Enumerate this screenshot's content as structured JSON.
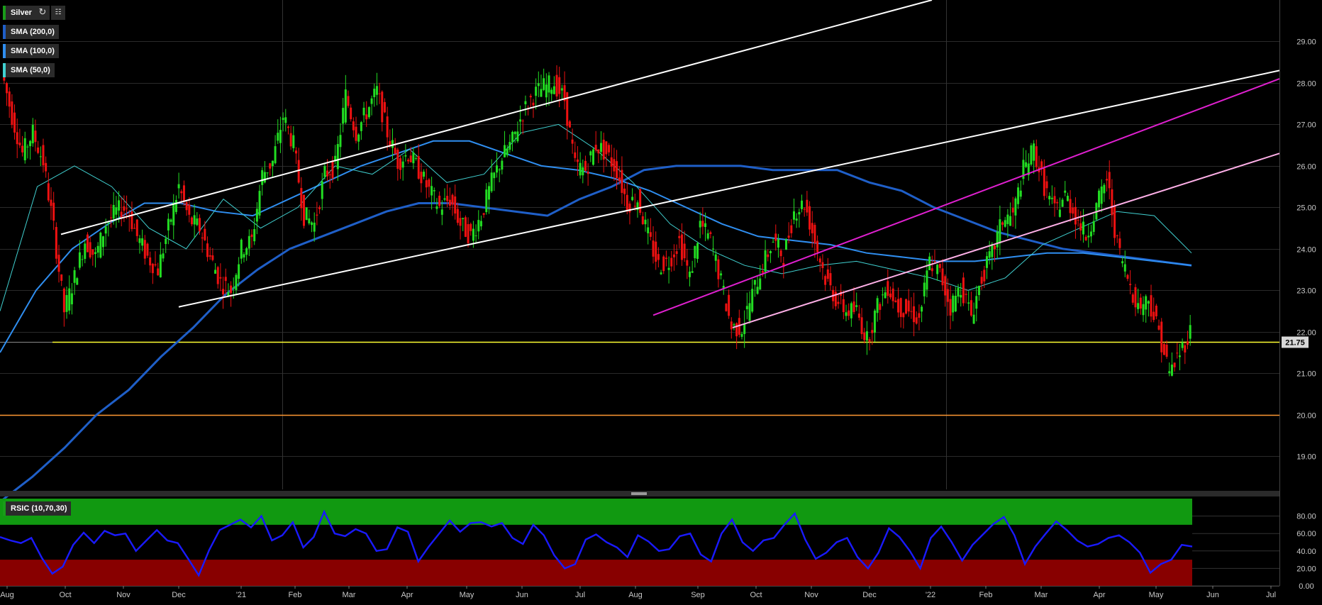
{
  "toolbar": {
    "symbol_label": "Silver",
    "refresh_icon": "refresh-icon",
    "indicator_icon": "indicator-icon"
  },
  "legend": {
    "sma200": "SMA (200,0)",
    "sma100": "SMA (100,0)",
    "sma50": "SMA (50,0)",
    "rsi": "RSIC (10,70,30)"
  },
  "colors": {
    "background": "#000000",
    "grid": "#2a2a2a",
    "candle_up": "#22dd22",
    "candle_down": "#ee1111",
    "sma200": "#1f5fc8",
    "sma100": "#2f8ef0",
    "sma50": "#40d0d0",
    "support_line": "#ffff33",
    "level_line": "#ff9933",
    "channel_white": "#ffffff",
    "channel_magenta": "#e020d0",
    "channel_pink": "#ffb0e8",
    "rsi_line": "#1a1aff",
    "rsi_overbought": "#119911",
    "rsi_oversold": "#880000"
  },
  "chart_data": {
    "type": "candlestick",
    "instrument": "Silver",
    "y_ticks": [
      "29.00",
      "28.00",
      "27.00",
      "26.00",
      "25.00",
      "24.00",
      "23.00",
      "22.00",
      "21.00",
      "20.00",
      "19.00"
    ],
    "ylim": [
      18.2,
      30.0
    ],
    "x_ticks": [
      "Aug",
      "Oct",
      "Nov",
      "Dec",
      "'21",
      "Feb",
      "Mar",
      "Apr",
      "May",
      "Jun",
      "Jul",
      "Aug",
      "Sep",
      "Oct",
      "Nov",
      "Dec",
      "'22",
      "Feb",
      "Mar",
      "Apr",
      "May",
      "Jun",
      "Jul"
    ],
    "current_price_label": "21.75",
    "current_price": 21.75,
    "support_level": 21.75,
    "level_20": 20.0,
    "close_series": [
      28.3,
      27.2,
      26.3,
      26.8,
      26.1,
      24.5,
      22.5,
      23.3,
      24.2,
      23.8,
      24.6,
      24.9,
      25.0,
      24.3,
      23.8,
      23.5,
      24.5,
      25.5,
      24.7,
      24.5,
      23.8,
      23.2,
      23.0,
      24.0,
      24.2,
      25.8,
      26.1,
      27.2,
      26.5,
      24.8,
      24.6,
      25.8,
      26.0,
      27.7,
      26.8,
      27.3,
      27.8,
      26.8,
      26.1,
      26.3,
      25.9,
      25.4,
      25.0,
      25.2,
      24.6,
      24.3,
      24.8,
      25.6,
      26.2,
      26.6,
      27.3,
      27.7,
      27.9,
      28.0,
      27.6,
      26.0,
      25.9,
      26.5,
      26.3,
      25.9,
      25.1,
      25.2,
      24.3,
      23.6,
      23.7,
      24.2,
      23.3,
      24.6,
      24.2,
      23.2,
      22.1,
      22.1,
      22.9,
      23.6,
      24.2,
      23.8,
      24.9,
      25.1,
      24.2,
      23.3,
      22.8,
      22.5,
      22.5,
      21.8,
      22.6,
      23.1,
      22.6,
      22.5,
      22.3,
      23.7,
      23.4,
      22.6,
      23.1,
      22.4,
      23.3,
      23.9,
      24.7,
      24.8,
      25.9,
      26.4,
      25.5,
      24.9,
      25.3,
      24.8,
      24.3,
      25.0,
      25.7,
      24.1,
      23.3,
      22.6,
      22.8,
      22.0,
      21.0,
      21.5,
      22.0
    ],
    "sma200_series": [
      17.9,
      18.5,
      19.2,
      20.0,
      20.6,
      21.4,
      22.1,
      22.9,
      23.5,
      24.0,
      24.3,
      24.6,
      24.9,
      25.1,
      25.1,
      25.0,
      24.9,
      24.8,
      25.2,
      25.5,
      25.9,
      26.0,
      26.0,
      26.0,
      25.9,
      25.9,
      25.9,
      25.6,
      25.4,
      25.0,
      24.7,
      24.4,
      24.2,
      24.0,
      23.9,
      23.8,
      23.7,
      23.6
    ],
    "sma100_series": [
      21.5,
      23.0,
      24.0,
      24.6,
      25.1,
      25.1,
      24.9,
      24.8,
      25.2,
      25.6,
      26.0,
      26.3,
      26.6,
      26.6,
      26.3,
      26.0,
      25.9,
      25.7,
      25.4,
      25.0,
      24.6,
      24.3,
      24.2,
      24.1,
      23.9,
      23.8,
      23.7,
      23.7,
      23.8,
      23.9,
      23.9,
      23.8,
      23.7,
      23.6
    ],
    "sma50_series": [
      22.5,
      25.5,
      26.0,
      25.5,
      24.5,
      24.0,
      25.2,
      24.5,
      25.0,
      26.0,
      25.8,
      26.4,
      25.6,
      25.8,
      26.8,
      27.0,
      26.4,
      25.6,
      24.6,
      24.0,
      23.6,
      23.4,
      23.6,
      23.7,
      23.5,
      23.3,
      23.0,
      23.3,
      24.1,
      24.5,
      24.9,
      24.8,
      23.9
    ],
    "channels": [
      {
        "name": "white-upper-1",
        "from": [
          "Sep 2020",
          24.35
        ],
        "to": [
          "Aug 2021",
          30.0
        ],
        "color": "#ffffff"
      },
      {
        "name": "white-lower-1",
        "from": [
          "Nov 2020",
          22.6
        ],
        "to": [
          "Mar 2022",
          28.3
        ],
        "color": "#ffffff"
      },
      {
        "name": "white-channel-2",
        "from": [
          "Apr 2021",
          22.1
        ],
        "to": [
          "May 2022",
          26.3
        ],
        "color": "#ffb0e8"
      },
      {
        "name": "magenta-channel",
        "from": [
          "Jul 2021",
          22.4
        ],
        "to": [
          "Jul 2022",
          28.1
        ],
        "color": "#e020d0"
      }
    ],
    "rsi": {
      "label": "RSIC (10,70,30)",
      "period": 10,
      "overbought": 70,
      "oversold": 30,
      "y_ticks": [
        "80.00",
        "60.00",
        "40.00",
        "20.00",
        "0.00"
      ],
      "ylim": [
        0,
        100
      ],
      "values": [
        56,
        52,
        49,
        55,
        32,
        14,
        22,
        47,
        61,
        49,
        63,
        58,
        60,
        40,
        52,
        64,
        52,
        49,
        31,
        12,
        41,
        64,
        70,
        76,
        67,
        80,
        52,
        58,
        73,
        44,
        56,
        85,
        60,
        57,
        65,
        60,
        40,
        42,
        67,
        62,
        28,
        45,
        60,
        75,
        62,
        72,
        73,
        68,
        72,
        55,
        48,
        70,
        58,
        35,
        20,
        25,
        53,
        59,
        50,
        44,
        33,
        58,
        51,
        40,
        42,
        57,
        60,
        36,
        28,
        60,
        76,
        50,
        40,
        52,
        55,
        70,
        83,
        53,
        31,
        38,
        50,
        55,
        33,
        20,
        38,
        66,
        56,
        40,
        20,
        55,
        68,
        50,
        29,
        47,
        59,
        71,
        79,
        58,
        25,
        45,
        60,
        74,
        64,
        52,
        45,
        48,
        55,
        58,
        50,
        38,
        15,
        25,
        30,
        47,
        45
      ]
    }
  }
}
